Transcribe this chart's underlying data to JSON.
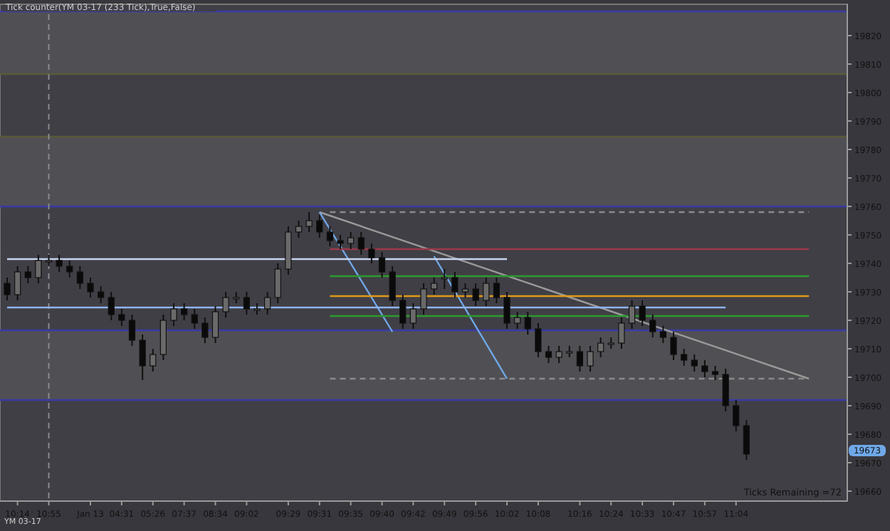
{
  "chart_data": {
    "type": "candlestick",
    "title": "Tick counter(YM 03-17 (233 Tick),True,False)",
    "categories": [
      null,
      "10:14",
      null,
      null,
      "10:55",
      null,
      null,
      null,
      "Jan 13",
      null,
      null,
      "04:31",
      null,
      null,
      "05:26",
      null,
      null,
      "07:37",
      null,
      null,
      "08:34",
      null,
      null,
      "09:02",
      null,
      null,
      null,
      "09:29",
      null,
      null,
      "09:31",
      null,
      null,
      "09:35",
      null,
      null,
      "09:40",
      null,
      null,
      "09:42",
      null,
      null,
      "09:49",
      null,
      null,
      "09:56",
      null,
      null,
      "10:02",
      null,
      null,
      "10:08",
      null,
      null,
      null,
      "10:16",
      null,
      null,
      "10:24",
      null,
      null,
      "10:33",
      null,
      null,
      "10:47",
      null,
      null,
      "10:57",
      null,
      null,
      "11:04",
      null,
      null,
      null,
      null,
      null,
      null,
      null,
      null,
      null
    ],
    "ohlc": [
      [
        19733,
        19735,
        19727,
        19729
      ],
      [
        19729,
        19739,
        19727,
        19737
      ],
      [
        19737,
        19739,
        19733,
        19735
      ],
      [
        19735,
        19743,
        19733,
        19741
      ],
      [
        19741,
        19743,
        19739,
        19741
      ],
      [
        19741,
        19743,
        19737,
        19739
      ],
      [
        19739,
        19741,
        19735,
        19737
      ],
      [
        19737,
        19739,
        19731,
        19733
      ],
      [
        19733,
        19735,
        19728,
        19730
      ],
      [
        19730,
        19732,
        19726,
        19728
      ],
      [
        19728,
        19730,
        19720,
        19722
      ],
      [
        19722,
        19724,
        19718,
        19720
      ],
      [
        19720,
        19722,
        19711,
        19713
      ],
      [
        19713,
        19715,
        19699,
        19704
      ],
      [
        19704,
        19710,
        19702,
        19708
      ],
      [
        19708,
        19722,
        19706,
        19720
      ],
      [
        19720,
        19726,
        19718,
        19724
      ],
      [
        19724,
        19726,
        19720,
        19722
      ],
      [
        19722,
        19724,
        19717,
        19719
      ],
      [
        19719,
        19721,
        19712,
        19714
      ],
      [
        19714,
        19725,
        19712,
        19723
      ],
      [
        19723,
        19730,
        19721,
        19728
      ],
      [
        19728,
        19730,
        19726,
        19728
      ],
      [
        19728,
        19730,
        19722,
        19724
      ],
      [
        19724,
        19726,
        19722,
        19724
      ],
      [
        19724,
        19730,
        19722,
        19728
      ],
      [
        19728,
        19740,
        19726,
        19738
      ],
      [
        19738,
        19753,
        19736,
        19751
      ],
      [
        19751,
        19755,
        19749,
        19753
      ],
      [
        19753,
        19758,
        19751,
        19755
      ],
      [
        19755,
        19757,
        19749,
        19751
      ],
      [
        19751,
        19753,
        19746,
        19748
      ],
      [
        19748,
        19750,
        19745,
        19747
      ],
      [
        19747,
        19751,
        19745,
        19749
      ],
      [
        19749,
        19751,
        19743,
        19745
      ],
      [
        19745,
        19747,
        19740,
        19742
      ],
      [
        19742,
        19744,
        19735,
        19737
      ],
      [
        19737,
        19739,
        19725,
        19727
      ],
      [
        19727,
        19729,
        19717,
        19719
      ],
      [
        19719,
        19726,
        19717,
        19724
      ],
      [
        19724,
        19733,
        19722,
        19731
      ],
      [
        19731,
        19735,
        19729,
        19733
      ],
      [
        19735,
        19738,
        19731,
        19735
      ],
      [
        19735,
        19737,
        19728,
        19730
      ],
      [
        19730,
        19733,
        19728,
        19731
      ],
      [
        19731,
        19733,
        19725,
        19727
      ],
      [
        19727,
        19735,
        19725,
        19733
      ],
      [
        19733,
        19735,
        19726,
        19728
      ],
      [
        19728,
        19730,
        19717,
        19719
      ],
      [
        19719,
        19723,
        19717,
        19721
      ],
      [
        19721,
        19723,
        19715,
        19717
      ],
      [
        19717,
        19719,
        19707,
        19709
      ],
      [
        19709,
        19711,
        19705,
        19707
      ],
      [
        19707,
        19711,
        19705,
        19709
      ],
      [
        19709,
        19711,
        19707,
        19709
      ],
      [
        19709,
        19711,
        19702,
        19704
      ],
      [
        19704,
        19711,
        19702,
        19709
      ],
      [
        19709,
        19714,
        19707,
        19712
      ],
      [
        19712,
        19714,
        19710,
        19712
      ],
      [
        19712,
        19721,
        19710,
        19719
      ],
      [
        19719,
        19727,
        19717,
        19725
      ],
      [
        19725,
        19727,
        19718,
        19720
      ],
      [
        19720,
        19722,
        19714,
        19716
      ],
      [
        19716,
        19718,
        19712,
        19714
      ],
      [
        19714,
        19716,
        19706,
        19708
      ],
      [
        19708,
        19710,
        19704,
        19706
      ],
      [
        19706,
        19708,
        19702,
        19704
      ],
      [
        19704,
        19706,
        19700,
        19702
      ],
      [
        19702,
        19704,
        19699,
        19701
      ],
      [
        19701,
        19703,
        19688,
        19690
      ],
      [
        19690,
        19692,
        19681,
        19683
      ],
      [
        19683,
        19685,
        19671,
        19673
      ],
      null,
      null,
      null,
      null,
      null,
      null,
      null,
      null
    ],
    "series": [
      {
        "type": "line",
        "color": "#9a9a9a",
        "values": [
          null,
          null,
          null,
          null,
          null,
          null,
          null,
          null,
          null,
          null,
          null,
          null,
          null,
          null,
          null,
          null,
          null,
          null,
          null,
          null,
          null,
          null,
          null,
          null,
          null,
          null,
          null,
          null,
          null,
          null,
          19758,
          null,
          null,
          null,
          null,
          null,
          null,
          null,
          null,
          null,
          null,
          null,
          null,
          null,
          null,
          null,
          null,
          null,
          null,
          null,
          null,
          null,
          null,
          null,
          null,
          null,
          null,
          null,
          null,
          null,
          null,
          null,
          null,
          null,
          null,
          null,
          null,
          null,
          null,
          null,
          null,
          null,
          null,
          null,
          null,
          null,
          null,
          19699.5,
          null,
          null
        ]
      },
      {
        "type": "line",
        "color": "#6fa8e8",
        "values": [
          null,
          null,
          null,
          null,
          null,
          null,
          null,
          null,
          null,
          null,
          null,
          null,
          null,
          null,
          null,
          null,
          null,
          null,
          null,
          null,
          null,
          null,
          null,
          null,
          null,
          null,
          null,
          null,
          null,
          null,
          19758,
          null,
          null,
          null,
          null,
          null,
          null,
          19716,
          null,
          null,
          null,
          null,
          null,
          null,
          null,
          null,
          null,
          null,
          null,
          null,
          null,
          null,
          null,
          null,
          null,
          null,
          null,
          null,
          null,
          null,
          null,
          null,
          null,
          null,
          null,
          null,
          null,
          null,
          null,
          null,
          null,
          null,
          null,
          null,
          null,
          null,
          null,
          null,
          null,
          null
        ]
      },
      {
        "type": "line",
        "color": "#6fa8e8",
        "values": [
          null,
          null,
          null,
          null,
          null,
          null,
          null,
          null,
          null,
          null,
          null,
          null,
          null,
          null,
          null,
          null,
          null,
          null,
          null,
          null,
          null,
          null,
          null,
          null,
          null,
          null,
          null,
          null,
          null,
          null,
          null,
          null,
          null,
          null,
          null,
          null,
          null,
          null,
          null,
          null,
          null,
          19742.5,
          null,
          null,
          null,
          null,
          null,
          null,
          19699.5,
          null,
          null,
          null,
          null,
          null,
          null,
          null,
          null,
          null,
          null,
          null,
          null,
          null,
          null,
          null,
          null,
          null,
          null,
          null,
          null,
          null,
          null,
          null,
          null,
          null,
          null,
          null,
          null,
          null,
          null,
          null
        ]
      },
      {
        "type": "line",
        "color": "#c8d4f0",
        "values": [
          19741.5,
          null,
          null,
          null,
          null,
          null,
          null,
          null,
          null,
          null,
          null,
          null,
          null,
          null,
          null,
          null,
          null,
          null,
          null,
          null,
          null,
          null,
          null,
          null,
          null,
          null,
          null,
          null,
          null,
          null,
          null,
          null,
          null,
          null,
          null,
          null,
          null,
          null,
          null,
          null,
          null,
          null,
          null,
          null,
          null,
          null,
          null,
          null,
          19741.5,
          null,
          null,
          null,
          null,
          null,
          null,
          null,
          null,
          null,
          null,
          null,
          null,
          null,
          null,
          null,
          null,
          null,
          null,
          null,
          null,
          null,
          null,
          null,
          null,
          null,
          null,
          null,
          null,
          null,
          null,
          null
        ]
      },
      {
        "type": "line",
        "color": "#8fb4f0",
        "values": [
          19724.5,
          null,
          null,
          null,
          null,
          null,
          null,
          null,
          null,
          null,
          null,
          null,
          null,
          null,
          null,
          null,
          null,
          null,
          null,
          null,
          null,
          null,
          null,
          null,
          null,
          null,
          null,
          null,
          null,
          null,
          null,
          null,
          null,
          null,
          null,
          null,
          null,
          null,
          null,
          null,
          null,
          null,
          null,
          null,
          null,
          null,
          null,
          null,
          null,
          null,
          null,
          null,
          null,
          null,
          null,
          null,
          null,
          null,
          null,
          null,
          null,
          null,
          null,
          null,
          null,
          null,
          null,
          null,
          null,
          19724.5,
          null,
          null,
          null,
          null,
          null,
          null,
          null,
          null,
          null,
          null
        ]
      },
      {
        "type": "line",
        "color": "#9a3a4a",
        "values": [
          null,
          null,
          null,
          null,
          null,
          null,
          null,
          null,
          null,
          null,
          null,
          null,
          null,
          null,
          null,
          null,
          null,
          null,
          null,
          null,
          null,
          null,
          null,
          null,
          null,
          null,
          null,
          null,
          null,
          null,
          null,
          19745,
          null,
          null,
          null,
          null,
          null,
          null,
          null,
          null,
          null,
          null,
          null,
          null,
          null,
          null,
          null,
          null,
          null,
          null,
          null,
          null,
          null,
          null,
          null,
          null,
          null,
          null,
          null,
          null,
          null,
          null,
          null,
          null,
          null,
          null,
          null,
          null,
          null,
          null,
          null,
          null,
          null,
          null,
          null,
          null,
          null,
          19745,
          null,
          null
        ]
      },
      {
        "type": "line",
        "color": "#2e9a2e",
        "values": [
          null,
          null,
          null,
          null,
          null,
          null,
          null,
          null,
          null,
          null,
          null,
          null,
          null,
          null,
          null,
          null,
          null,
          null,
          null,
          null,
          null,
          null,
          null,
          null,
          null,
          null,
          null,
          null,
          null,
          null,
          null,
          19735.5,
          null,
          null,
          null,
          null,
          null,
          null,
          null,
          null,
          null,
          null,
          null,
          null,
          null,
          null,
          null,
          null,
          null,
          null,
          null,
          null,
          null,
          null,
          null,
          null,
          null,
          null,
          null,
          null,
          null,
          null,
          null,
          null,
          null,
          null,
          null,
          null,
          null,
          null,
          null,
          null,
          null,
          null,
          null,
          null,
          null,
          19735.5,
          null,
          null
        ]
      },
      {
        "type": "line",
        "color": "#e09a1a",
        "values": [
          null,
          null,
          null,
          null,
          null,
          null,
          null,
          null,
          null,
          null,
          null,
          null,
          null,
          null,
          null,
          null,
          null,
          null,
          null,
          null,
          null,
          null,
          null,
          null,
          null,
          null,
          null,
          null,
          null,
          null,
          null,
          19728.5,
          null,
          null,
          null,
          null,
          null,
          null,
          null,
          null,
          null,
          null,
          null,
          null,
          null,
          null,
          null,
          null,
          null,
          null,
          null,
          null,
          null,
          null,
          null,
          null,
          null,
          null,
          null,
          null,
          null,
          null,
          null,
          null,
          null,
          null,
          null,
          null,
          null,
          null,
          null,
          null,
          null,
          null,
          null,
          null,
          null,
          19728.5,
          null,
          null
        ]
      },
      {
        "type": "line",
        "color": "#2e9a2e",
        "values": [
          null,
          null,
          null,
          null,
          null,
          null,
          null,
          null,
          null,
          null,
          null,
          null,
          null,
          null,
          null,
          null,
          null,
          null,
          null,
          null,
          null,
          null,
          null,
          null,
          null,
          null,
          null,
          null,
          null,
          null,
          null,
          19721.5,
          null,
          null,
          null,
          null,
          null,
          null,
          null,
          null,
          null,
          null,
          null,
          null,
          null,
          null,
          null,
          null,
          null,
          null,
          null,
          null,
          null,
          null,
          null,
          null,
          null,
          null,
          null,
          null,
          null,
          null,
          null,
          null,
          null,
          null,
          null,
          null,
          null,
          null,
          null,
          null,
          null,
          null,
          null,
          null,
          null,
          19721.5,
          null,
          null
        ]
      },
      {
        "type": "line",
        "color": "#8a8a8a",
        "line_style": "dashed",
        "values": [
          null,
          null,
          null,
          null,
          null,
          null,
          null,
          null,
          null,
          null,
          null,
          null,
          null,
          null,
          null,
          null,
          null,
          null,
          null,
          null,
          null,
          null,
          null,
          null,
          null,
          null,
          null,
          null,
          null,
          null,
          null,
          19758,
          null,
          null,
          null,
          null,
          null,
          null,
          null,
          null,
          null,
          null,
          null,
          null,
          null,
          null,
          null,
          null,
          null,
          null,
          null,
          null,
          null,
          null,
          null,
          null,
          null,
          null,
          null,
          null,
          null,
          null,
          null,
          null,
          null,
          null,
          null,
          null,
          null,
          null,
          null,
          null,
          null,
          null,
          null,
          null,
          null,
          19758,
          null,
          null
        ]
      },
      {
        "type": "line",
        "color": "#8a8a8a",
        "line_style": "dashed",
        "values": [
          null,
          null,
          null,
          null,
          null,
          null,
          null,
          null,
          null,
          null,
          null,
          null,
          null,
          null,
          null,
          null,
          null,
          null,
          null,
          null,
          null,
          null,
          null,
          null,
          null,
          null,
          null,
          null,
          null,
          null,
          null,
          19699.5,
          null,
          null,
          null,
          null,
          null,
          null,
          null,
          null,
          null,
          null,
          null,
          null,
          null,
          null,
          null,
          null,
          null,
          null,
          null,
          null,
          null,
          null,
          null,
          null,
          null,
          null,
          null,
          null,
          null,
          null,
          null,
          null,
          null,
          null,
          null,
          null,
          null,
          null,
          null,
          null,
          null,
          null,
          null,
          null,
          null,
          19699.5,
          null,
          null
        ]
      }
    ],
    "bands": [
      {
        "axis": "y",
        "from": 19806.5,
        "to": 19828.5,
        "color": "#505054"
      },
      {
        "axis": "y",
        "from": 19760,
        "to": 19784.5,
        "color": "#505054"
      },
      {
        "axis": "y",
        "from": 19692,
        "to": 19716.5,
        "color": "#505054"
      }
    ],
    "ref_lines": [
      {
        "axis": "y",
        "value": 19828.5,
        "color": "#3a3aa8"
      },
      {
        "axis": "y",
        "value": 19806.5,
        "color": "#5a5a3a"
      },
      {
        "axis": "y",
        "value": 19784.5,
        "color": "#5a5a3a"
      },
      {
        "axis": "y",
        "value": 19760,
        "color": "#3a3aa8"
      },
      {
        "axis": "y",
        "value": 19716.5,
        "color": "#3a3aa8"
      },
      {
        "axis": "y",
        "value": 19692,
        "color": "#3a3aa8"
      },
      {
        "axis": "x",
        "value": "10:55",
        "color": "#8a8a8a",
        "line_style": "dashed"
      }
    ],
    "ylim": [
      19656.5,
      19831
    ],
    "yticks": [
      19660,
      19670,
      19680,
      19690,
      19700,
      19710,
      19720,
      19730,
      19740,
      19750,
      19760,
      19770,
      19780,
      19790,
      19800,
      19810,
      19820
    ],
    "annotations": [
      "Ticks Remaining =72",
      "YM 03-17",
      "19673"
    ],
    "grid": false
  }
}
